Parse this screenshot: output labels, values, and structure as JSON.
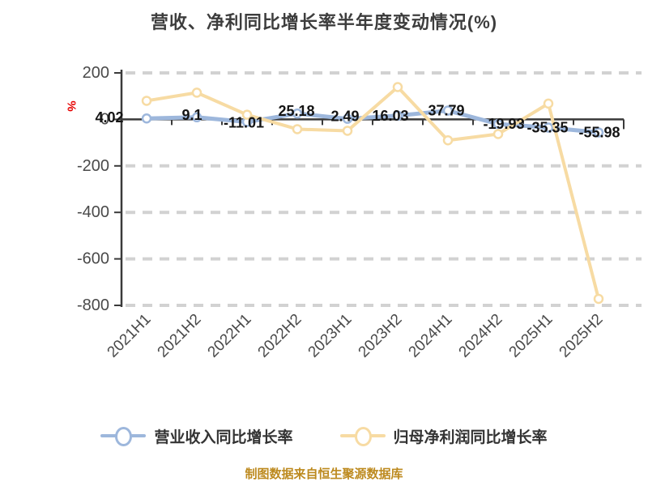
{
  "title": "营收、净利同比增长率半年度变动情况(%)",
  "footer": "制图数据来自恒生聚源数据库",
  "colors": {
    "revenue_line": "#9db7dc",
    "profit_line": "#f7dba3",
    "axis_line": "#3a3a3a",
    "grid_line": "#d2d2d2",
    "data_label": "#141414",
    "tick_text": "#4a4a4a",
    "title_text": "#3d3d3d",
    "footer_text": "#bd8a1f",
    "unit_symbol": "#e60000",
    "legend_text": "#333333"
  },
  "legend": [
    {
      "name": "营业收入同比增长率",
      "color": "#9db7dc"
    },
    {
      "name": "归母净利润同比增长率",
      "color": "#f7dba3"
    }
  ],
  "y_axis_unit": "%",
  "chart_data": {
    "type": "line",
    "title": "营收、净利同比增长率半年度变动情况(%)",
    "xlabel": "",
    "ylabel": "%",
    "categories": [
      "2021H1",
      "2021H2",
      "2022H1",
      "2022H2",
      "2023H1",
      "2023H2",
      "2024H1",
      "2024H2",
      "2025H1",
      "2025H2"
    ],
    "series": [
      {
        "name": "营业收入同比增长率",
        "color": "#9db7dc",
        "values": [
          4.02,
          9.1,
          -11.01,
          25.18,
          2.49,
          16.03,
          37.79,
          -19.93,
          -35.35,
          -55.98
        ],
        "labels": [
          "4.02",
          "9.1",
          "-11.01",
          "25.18",
          "2.49",
          "16.03",
          "37.79",
          "-19.93",
          "-35.35",
          "-55.98"
        ],
        "label_offsets": [
          [
            -46,
            -1
          ],
          [
            -6,
            -3
          ],
          [
            -4,
            1
          ],
          [
            -1,
            -3
          ],
          [
            -3,
            -3
          ],
          [
            -9,
            0
          ],
          [
            -2,
            0
          ],
          [
            7,
            0
          ],
          [
            -1,
            0
          ],
          [
            1,
            0
          ]
        ]
      },
      {
        "name": "归母净利润同比增长率",
        "color": "#f7dba3",
        "values": [
          80,
          115,
          20,
          -42,
          -49,
          139,
          -90,
          -63,
          68,
          -772
        ],
        "labels": null
      }
    ],
    "ylim": [
      -800,
      200
    ],
    "yticks": [
      200,
      0,
      -200,
      -400,
      -600,
      -800
    ],
    "grid": "dashed horizontal",
    "legend_position": "bottom"
  }
}
